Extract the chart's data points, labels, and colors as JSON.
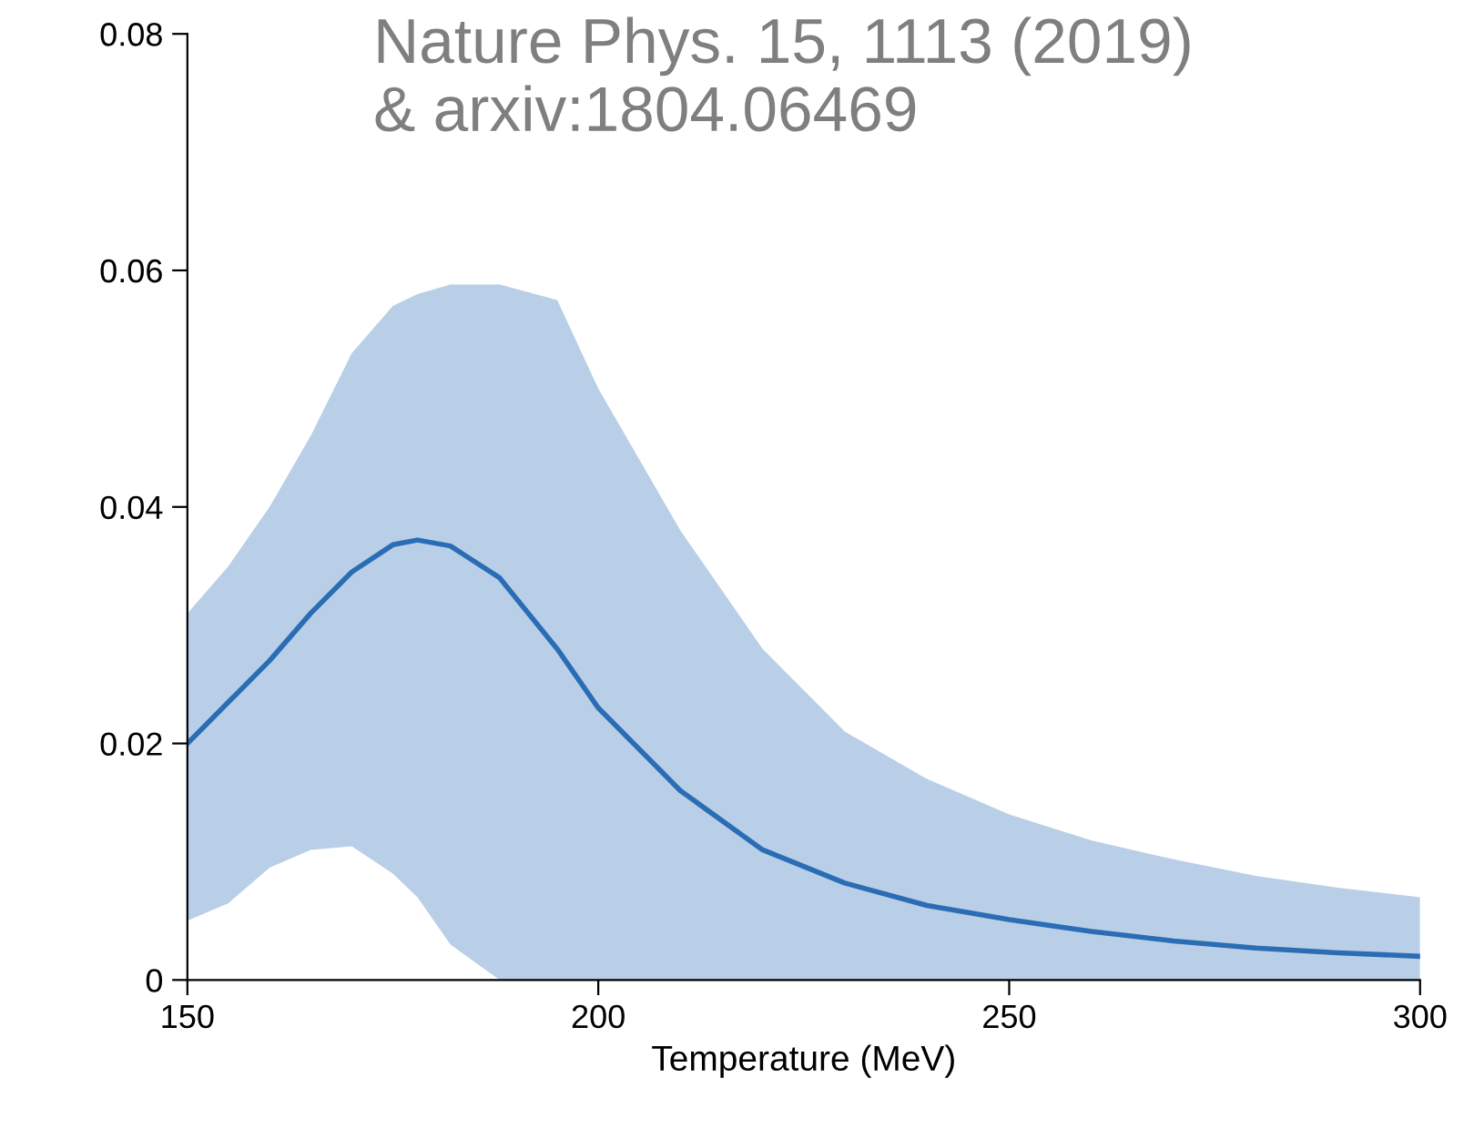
{
  "chart_data": {
    "type": "line",
    "xlabel": "Temperature (MeV)",
    "annotations": [
      "Nature Phys. 15, 1113 (2019)\n& arxiv:1804.06469"
    ],
    "xlim": [
      150,
      300
    ],
    "xticks": [
      150,
      200,
      250,
      300
    ],
    "ylim": [
      0,
      0.08
    ],
    "yticks": [
      0,
      0.02,
      0.04,
      0.06,
      0.08
    ],
    "grid": false,
    "series": [
      {
        "color": "#2a6db5",
        "x": [
          150,
          155,
          160,
          165,
          170,
          175,
          178,
          182,
          188,
          195,
          200,
          210,
          220,
          230,
          240,
          250,
          260,
          270,
          280,
          290,
          300
        ],
        "values": [
          0.02,
          0.0235,
          0.027,
          0.031,
          0.0345,
          0.0368,
          0.0372,
          0.0367,
          0.034,
          0.028,
          0.023,
          0.016,
          0.011,
          0.0082,
          0.0063,
          0.0051,
          0.0041,
          0.0033,
          0.0027,
          0.0023,
          0.002
        ],
        "upper": [
          0.031,
          0.035,
          0.04,
          0.046,
          0.053,
          0.057,
          0.058,
          0.0588,
          0.0588,
          0.0575,
          0.05,
          0.038,
          0.028,
          0.021,
          0.017,
          0.014,
          0.0118,
          0.0102,
          0.0088,
          0.0078,
          0.007
        ],
        "lower": [
          0.005,
          0.0065,
          0.0095,
          0.011,
          0.0113,
          0.009,
          0.007,
          0.003,
          0.0,
          0.0,
          0.0,
          0.0,
          0.0,
          0.0,
          0.0,
          0.0,
          0.0,
          0.0,
          0.0,
          0.0,
          0.0
        ]
      }
    ]
  }
}
